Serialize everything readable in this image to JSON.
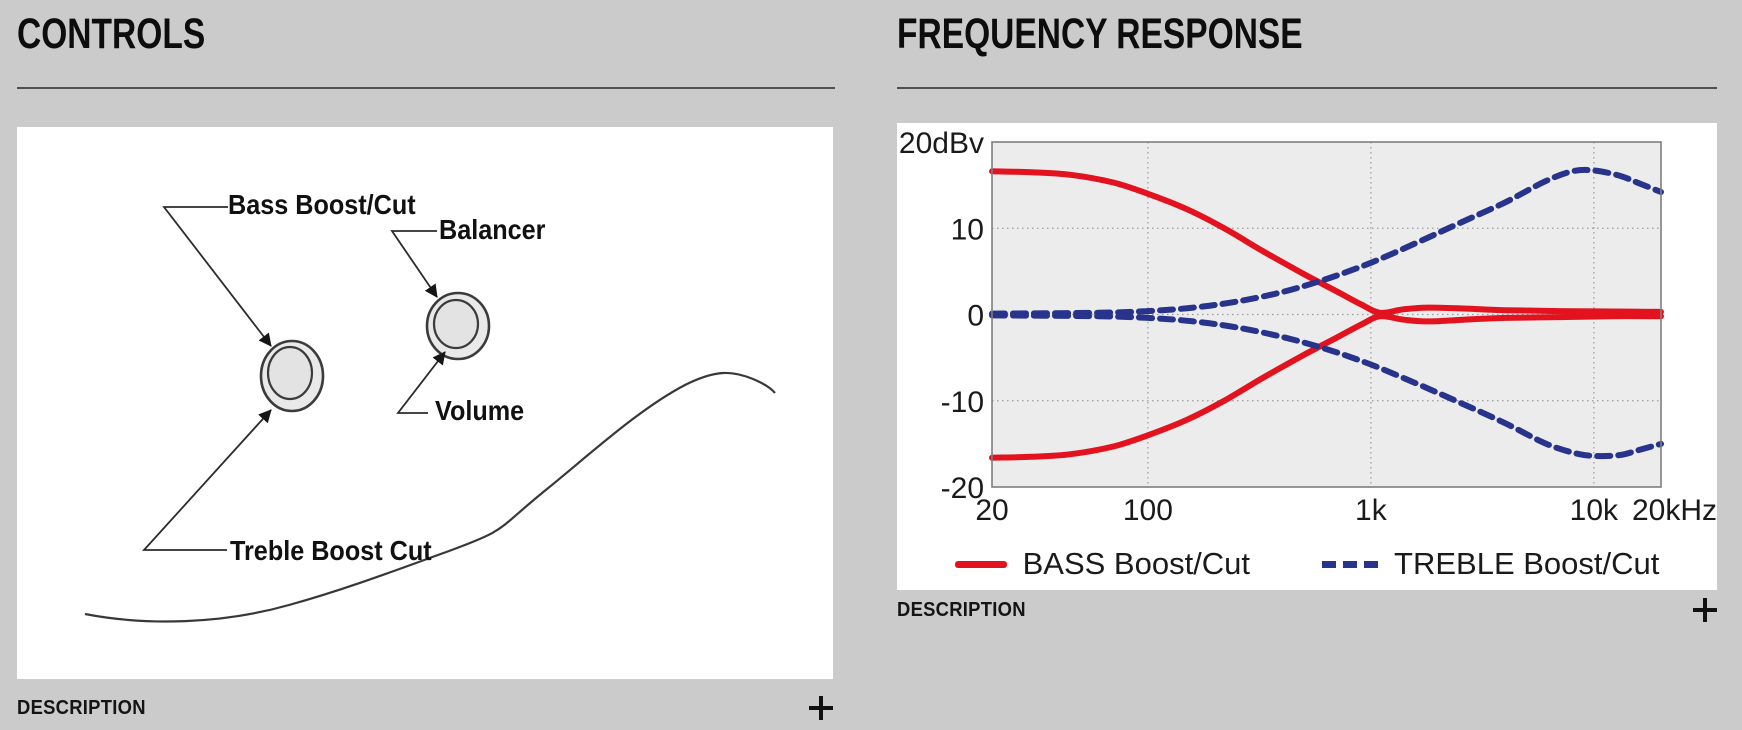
{
  "controls_section": {
    "title": "CONTROLS",
    "description_label": "DESCRIPTION",
    "expand_button": "+",
    "diagram_labels": {
      "bass": "Bass Boost/Cut",
      "balancer": "Balancer",
      "volume": "Volume",
      "treble": "Treble Boost Cut"
    }
  },
  "frequency_section": {
    "title": "FREQUENCY RESPONSE",
    "description_label": "DESCRIPTION",
    "expand_button": "+"
  },
  "chart_data": {
    "type": "line",
    "x_scale": "log",
    "xlim": [
      20,
      20000
    ],
    "ylim": [
      -20,
      20
    ],
    "x_unit": "Hz",
    "y_unit": "dBv",
    "grid": "dotted",
    "plot_bg": "#ececec",
    "plot_border": "#7f7f7f",
    "grid_color": "#9a9a9a",
    "y_ticks": [
      {
        "value": 20,
        "label": "20dBv",
        "grid": false
      },
      {
        "value": 10,
        "label": "10",
        "grid": true
      },
      {
        "value": 0,
        "label": "0",
        "grid": true
      },
      {
        "value": -10,
        "label": "-10",
        "grid": true
      },
      {
        "value": -20,
        "label": "-20",
        "grid": false
      }
    ],
    "x_ticks": [
      {
        "value": 20,
        "label": "20",
        "grid": false,
        "anchor": "middle"
      },
      {
        "value": 100,
        "label": "100",
        "grid": true,
        "anchor": "middle"
      },
      {
        "value": 1000,
        "label": "1k",
        "grid": true,
        "anchor": "middle"
      },
      {
        "value": 10000,
        "label": "10k",
        "grid": true,
        "anchor": "middle"
      },
      {
        "value": 20000,
        "label": "20kHz",
        "grid": false,
        "anchor": "end"
      }
    ],
    "legend": [
      {
        "label": "BASS Boost/Cut",
        "color": "#e2131e",
        "style": "solid"
      },
      {
        "label": "TREBLE Boost/Cut",
        "color": "#28338c",
        "style": "dashed"
      }
    ],
    "series": [
      {
        "name": "bass-boost",
        "color": "#e2131e",
        "dash": null,
        "width": 6,
        "points": [
          [
            20,
            16.6
          ],
          [
            30,
            16.5
          ],
          [
            45,
            16.2
          ],
          [
            70,
            15.3
          ],
          [
            100,
            14.0
          ],
          [
            150,
            12.2
          ],
          [
            220,
            10.0
          ],
          [
            330,
            7.3
          ],
          [
            500,
            4.7
          ],
          [
            700,
            2.7
          ],
          [
            900,
            1.2
          ],
          [
            1100,
            0.2
          ],
          [
            1400,
            0.6
          ],
          [
            1800,
            0.8
          ],
          [
            2600,
            0.7
          ],
          [
            4000,
            0.5
          ],
          [
            7000,
            0.4
          ],
          [
            12000,
            0.35
          ],
          [
            20000,
            0.3
          ]
        ]
      },
      {
        "name": "bass-cut",
        "color": "#e2131e",
        "dash": null,
        "width": 6,
        "points": [
          [
            20,
            -16.6
          ],
          [
            30,
            -16.5
          ],
          [
            45,
            -16.2
          ],
          [
            70,
            -15.3
          ],
          [
            100,
            -14.0
          ],
          [
            150,
            -12.2
          ],
          [
            220,
            -10.0
          ],
          [
            330,
            -7.3
          ],
          [
            500,
            -4.7
          ],
          [
            700,
            -2.7
          ],
          [
            900,
            -1.2
          ],
          [
            1100,
            -0.2
          ],
          [
            1400,
            -0.6
          ],
          [
            1800,
            -0.8
          ],
          [
            2600,
            -0.6
          ],
          [
            4000,
            -0.4
          ],
          [
            7000,
            -0.3
          ],
          [
            12000,
            -0.2
          ],
          [
            20000,
            -0.2
          ]
        ]
      },
      {
        "name": "treble-boost",
        "color": "#28338c",
        "dash": "13 8",
        "width": 6,
        "points": [
          [
            20,
            0.1
          ],
          [
            60,
            0.2
          ],
          [
            100,
            0.4
          ],
          [
            160,
            0.8
          ],
          [
            250,
            1.5
          ],
          [
            400,
            2.6
          ],
          [
            630,
            4.1
          ],
          [
            1000,
            6.0
          ],
          [
            1600,
            8.3
          ],
          [
            2500,
            10.6
          ],
          [
            4000,
            13.0
          ],
          [
            6000,
            15.4
          ],
          [
            8000,
            16.6
          ],
          [
            10000,
            16.7
          ],
          [
            13000,
            16.1
          ],
          [
            16000,
            15.2
          ],
          [
            20000,
            14.2
          ]
        ]
      },
      {
        "name": "treble-cut",
        "color": "#28338c",
        "dash": "13 8",
        "width": 6,
        "points": [
          [
            20,
            -0.1
          ],
          [
            60,
            -0.2
          ],
          [
            100,
            -0.4
          ],
          [
            160,
            -0.8
          ],
          [
            250,
            -1.5
          ],
          [
            400,
            -2.6
          ],
          [
            630,
            -4.0
          ],
          [
            1000,
            -5.8
          ],
          [
            1600,
            -8.0
          ],
          [
            2500,
            -10.2
          ],
          [
            4000,
            -12.6
          ],
          [
            6000,
            -14.9
          ],
          [
            8000,
            -16.0
          ],
          [
            10000,
            -16.4
          ],
          [
            13000,
            -16.3
          ],
          [
            16000,
            -15.7
          ],
          [
            20000,
            -15.0
          ]
        ]
      }
    ]
  }
}
